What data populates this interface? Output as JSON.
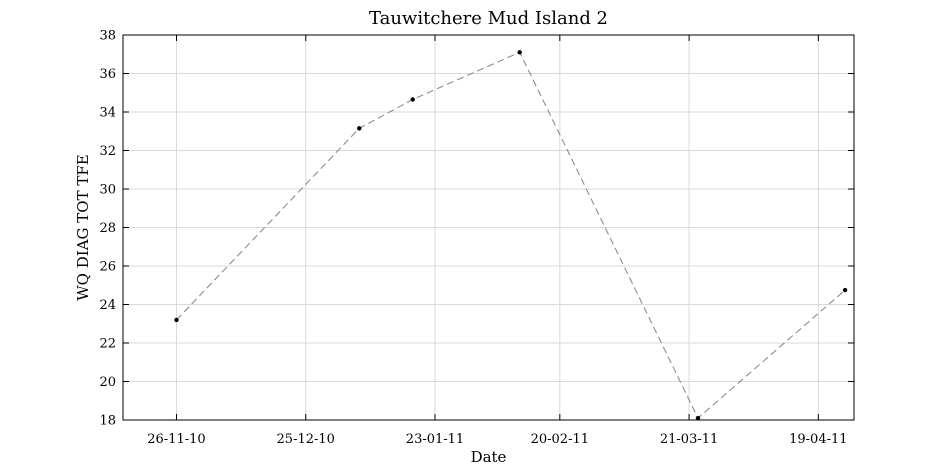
{
  "chart_data": {
    "type": "line",
    "title": "Tauwitchere Mud Island 2",
    "xlabel": "Date",
    "ylabel": "WQ DIAG TOT TFE",
    "x_axis_type": "date",
    "x_tick_labels": [
      "26-11-10",
      "25-12-10",
      "23-01-11",
      "20-02-11",
      "21-03-11",
      "19-04-11"
    ],
    "x_ticks": [
      "2010-11-26",
      "2010-12-25",
      "2011-01-23",
      "2011-02-20",
      "2011-03-21",
      "2011-04-19"
    ],
    "xlim": [
      "2010-11-14",
      "2011-04-27"
    ],
    "ylim": [
      18,
      38
    ],
    "y_ticks": [
      18,
      20,
      22,
      24,
      26,
      28,
      30,
      32,
      34,
      36,
      38
    ],
    "grid": true,
    "series": [
      {
        "line_style": "dashed",
        "line_color": "#8c8c8c",
        "marker_color": "#000000",
        "points": [
          {
            "x": "2010-11-26",
            "y": 23.2
          },
          {
            "x": "2011-01-06",
            "y": 33.15
          },
          {
            "x": "2011-01-18",
            "y": 34.65
          },
          {
            "x": "2011-02-11",
            "y": 37.1
          },
          {
            "x": "2011-03-23",
            "y": 18.1
          },
          {
            "x": "2011-04-25",
            "y": 24.75
          }
        ]
      }
    ]
  }
}
